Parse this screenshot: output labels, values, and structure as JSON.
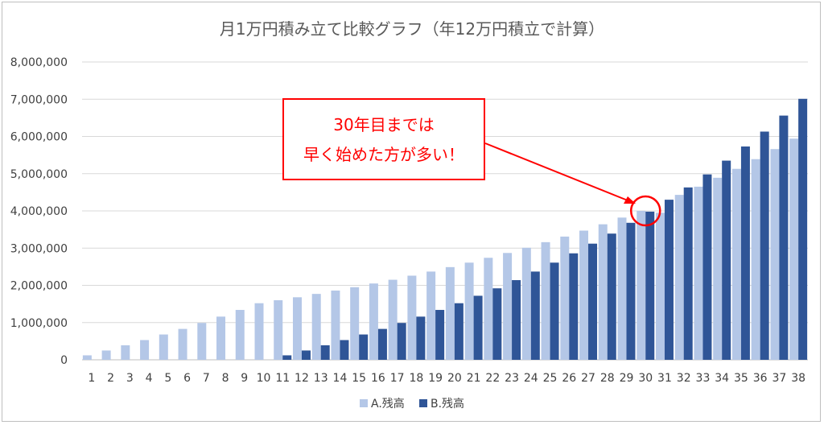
{
  "chart_data": {
    "type": "bar",
    "title": "月1万円積み立て比較グラフ（年12万円積立で計算）",
    "xlabel": "",
    "ylabel": "",
    "ylim": [
      0,
      8000000
    ],
    "yticks": [
      "0",
      "1,000,000",
      "2,000,000",
      "3,000,000",
      "4,000,000",
      "5,000,000",
      "6,000,000",
      "7,000,000",
      "8,000,000"
    ],
    "categories": [
      "1",
      "2",
      "3",
      "4",
      "5",
      "6",
      "7",
      "8",
      "9",
      "10",
      "11",
      "12",
      "13",
      "14",
      "15",
      "16",
      "17",
      "18",
      "19",
      "20",
      "21",
      "22",
      "23",
      "24",
      "25",
      "26",
      "27",
      "28",
      "29",
      "30",
      "31",
      "32",
      "33",
      "34",
      "35",
      "36",
      "37",
      "38"
    ],
    "series": [
      {
        "name": "A.残高",
        "color": "#b4c7e7",
        "values": [
          120000,
          250000,
          390000,
          530000,
          680000,
          830000,
          990000,
          1160000,
          1340000,
          1520000,
          1600000,
          1680000,
          1770000,
          1860000,
          1950000,
          2050000,
          2150000,
          2260000,
          2370000,
          2490000,
          2610000,
          2740000,
          2870000,
          3010000,
          3160000,
          3310000,
          3470000,
          3640000,
          3820000,
          4000000,
          3950000,
          4430000,
          4650000,
          4890000,
          5130000,
          5390000,
          5660000,
          5940000
        ]
      },
      {
        "name": "B.残高",
        "color": "#2f5597",
        "values": [
          0,
          0,
          0,
          0,
          0,
          0,
          0,
          0,
          0,
          0,
          120000,
          250000,
          390000,
          530000,
          680000,
          830000,
          990000,
          1160000,
          1340000,
          1520000,
          1720000,
          1920000,
          2140000,
          2370000,
          2610000,
          2860000,
          3120000,
          3390000,
          3680000,
          3980000,
          4300000,
          4630000,
          4980000,
          5350000,
          5730000,
          6130000,
          6560000,
          7010000
        ]
      }
    ],
    "grid": true,
    "legend": "bottom",
    "annotation": {
      "lines": [
        "30年目までは",
        "早く始めた方が多い！"
      ],
      "color": "#ff0000",
      "target_category": "30",
      "target_value": 4000000
    }
  }
}
